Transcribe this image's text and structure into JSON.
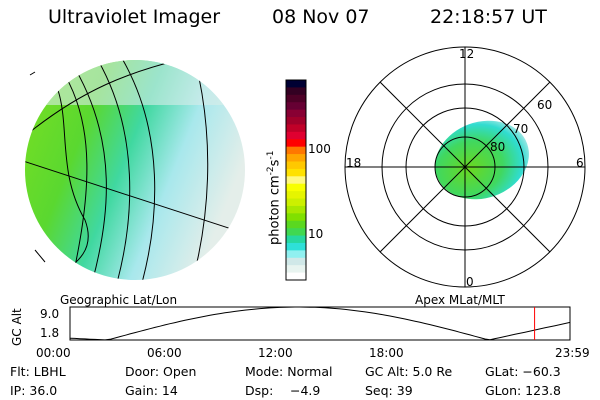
{
  "header": {
    "instrument": "Ultraviolet Imager",
    "date": "08 Nov 07",
    "time": "22:18:57 UT"
  },
  "colorbar": {
    "label_main": "photon cm",
    "sup1": "-2",
    "mid": "s",
    "sup2": "-1",
    "ticks": [
      "100",
      "10"
    ],
    "colors": [
      "#000033",
      "#330022",
      "#4d0026",
      "#660033",
      "#880033",
      "#a0002a",
      "#c00028",
      "#e00030",
      "#ff0000",
      "#ff7700",
      "#ffa500",
      "#ffc800",
      "#ffe100",
      "#fff880",
      "#f8ff00",
      "#e6f500",
      "#ccf000",
      "#a8e800",
      "#80e000",
      "#5ad820",
      "#40d850",
      "#26d8a0",
      "#2ee0d8",
      "#90f0f0",
      "#d0e8e8",
      "#e8f4f0",
      "#ffffff"
    ]
  },
  "left_map": {
    "caption": "Geographic Lat/Lon"
  },
  "right_map": {
    "caption": "Apex MLat/MLT",
    "mlt_labels": {
      "top": "12",
      "bottom": "0",
      "left": "18",
      "right": "6"
    },
    "lat_labels": [
      "60",
      "70",
      "80"
    ]
  },
  "altitude_plot": {
    "ylabel": "GC Alt",
    "yticks": [
      "9.0",
      "1.8"
    ],
    "xticks": [
      "00:00",
      "06:00",
      "12:00",
      "18:00",
      "23:59"
    ],
    "current_time_hours": 22.3,
    "marker_color": "#ff0000"
  },
  "info": {
    "filter": "Flt: LBHL",
    "door": "Door: Open",
    "mode": "Mode: Normal",
    "gc_alt": "GC Alt: 5.0 Re",
    "glat": "GLat: −60.3",
    "ip": "IP: 36.0",
    "gain": "Gain: 14",
    "dsp_label": "Dsp:",
    "dsp_value": "−4.9",
    "seq": "Seq: 39",
    "glon": "GLon: 123.8"
  }
}
